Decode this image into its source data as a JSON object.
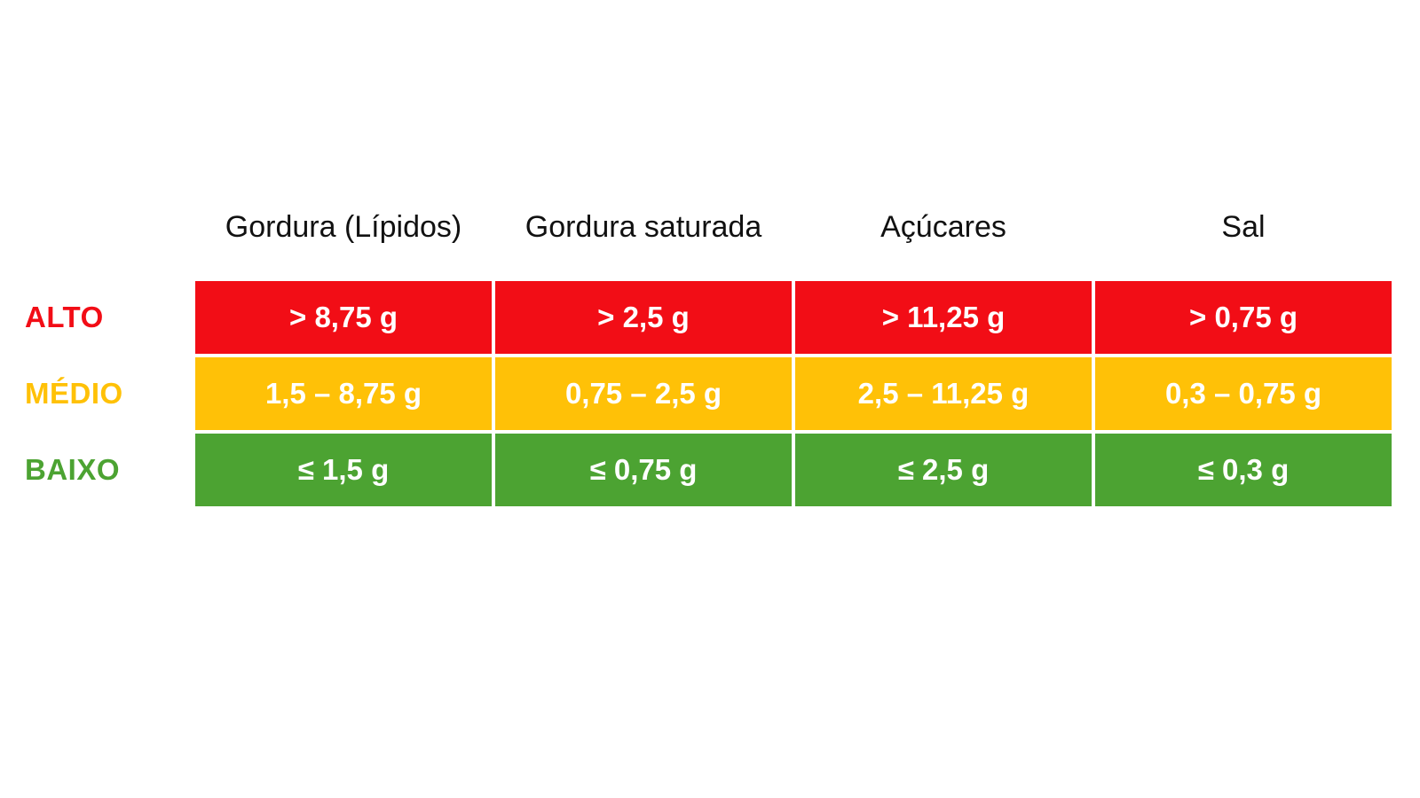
{
  "chart_data": {
    "type": "table",
    "title": "",
    "columns": [
      "Gordura (Lípidos)",
      "Gordura saturada",
      "Açúcares",
      "Sal"
    ],
    "rows": [
      {
        "label": "ALTO",
        "color": "#F20D16",
        "label_color": "#F20D16",
        "values": [
          "> 8,75 g",
          "> 2,5 g",
          "> 11,25 g",
          "> 0,75 g"
        ]
      },
      {
        "label": "MÉDIO",
        "color": "#FFC107",
        "label_color": "#FFC107",
        "values": [
          "1,5 – 8,75 g",
          "0,75 – 2,5 g",
          "2,5 – 11,25 g",
          "0,3 – 0,75 g"
        ]
      },
      {
        "label": "BAIXO",
        "color": "#4CA332",
        "label_color": "#4CA332",
        "values": [
          "≤ 1,5 g",
          "≤ 0,75 g",
          "≤ 2,5 g",
          "≤ 0,3 g"
        ]
      }
    ],
    "layout": {
      "cell_text_color": "#FFFFFF",
      "header_text_color": "#111111",
      "background": "#FFFFFF",
      "separator_color": "#FFFFFF"
    }
  }
}
